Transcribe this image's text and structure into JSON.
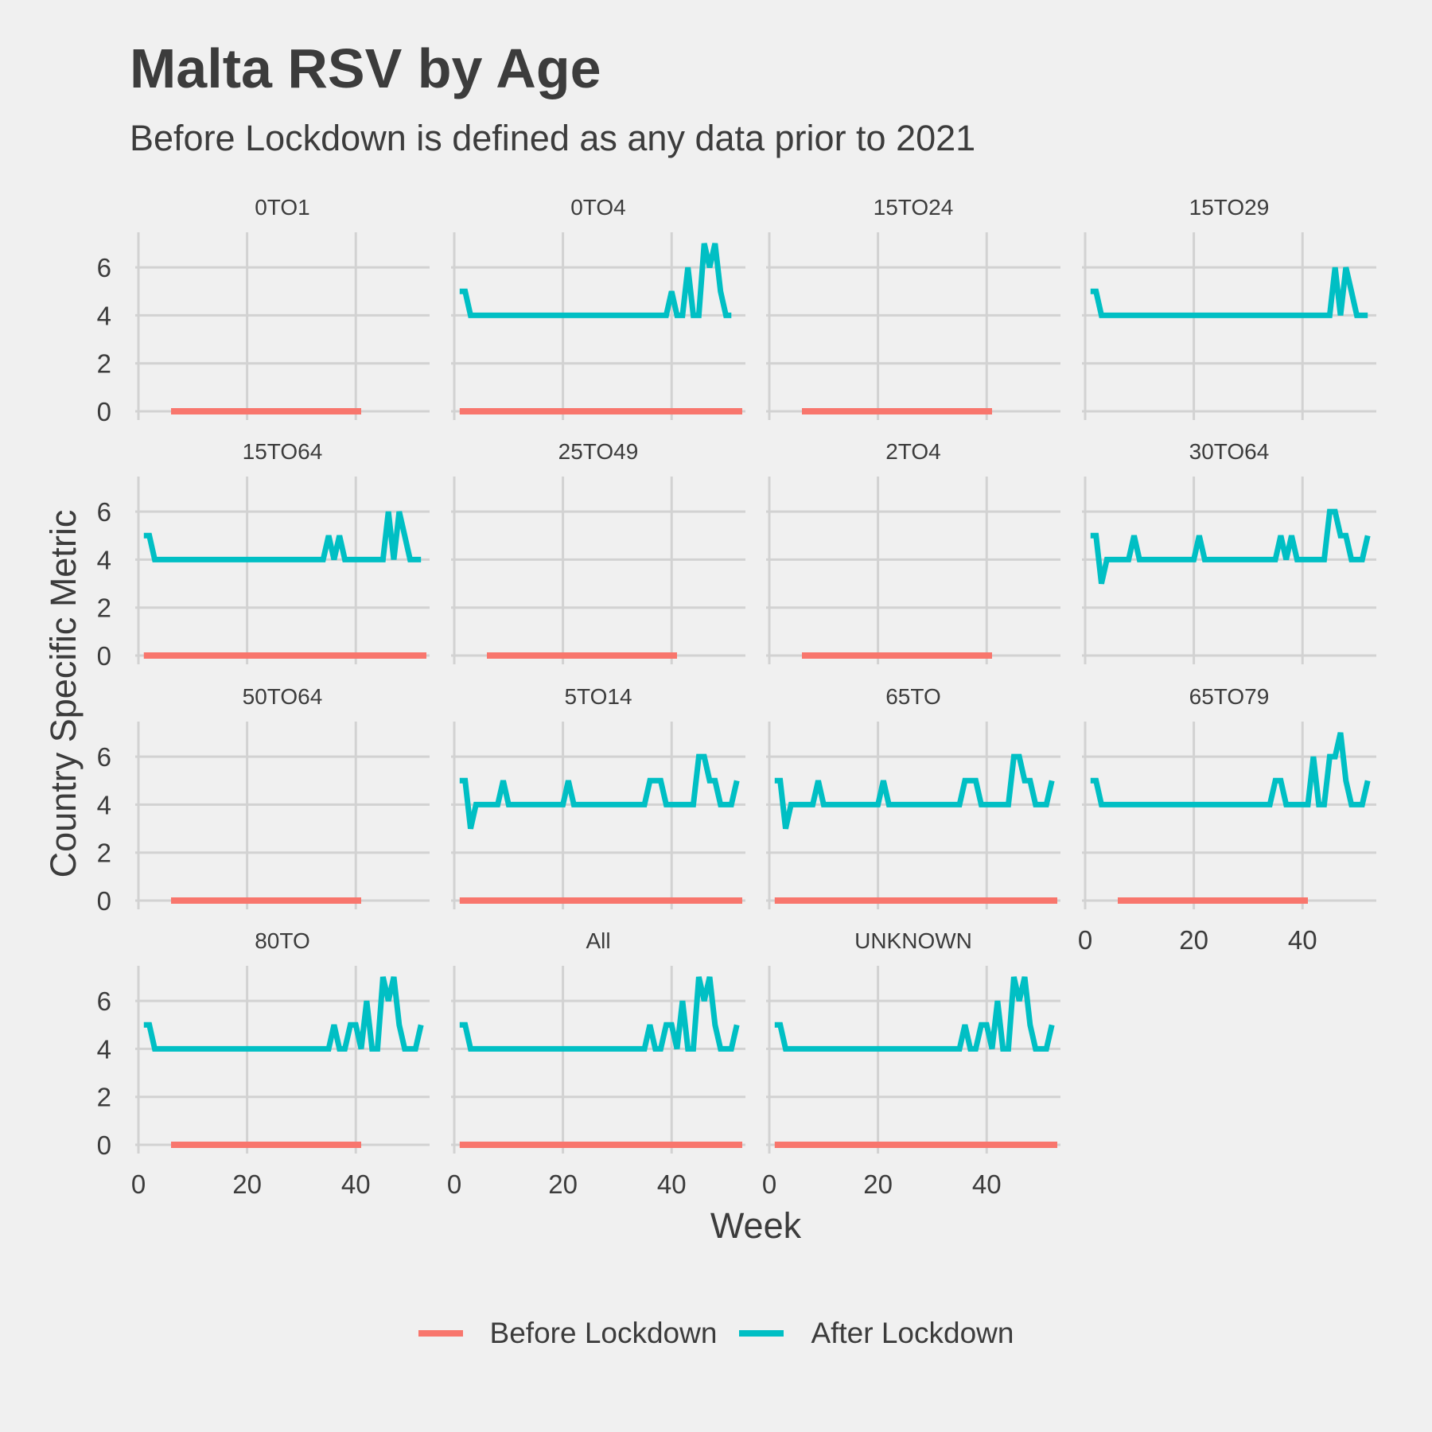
{
  "title": "Malta RSV by Age",
  "subtitle": "Before Lockdown is defined as any data prior to 2021",
  "legend": {
    "before_label": "Before Lockdown",
    "after_label": "After Lockdown",
    "before_color": "#F8766D",
    "after_color": "#00BFC4"
  },
  "chart_data": {
    "type": "line",
    "title": "Malta RSV by Age",
    "subtitle": "Before Lockdown is defined as any data prior to 2021",
    "xlabel": "Week",
    "ylabel": "Country Specific Metric",
    "xlim": [
      0,
      53
    ],
    "ylim": [
      0,
      7
    ],
    "x_ticks": [
      0,
      20,
      40
    ],
    "y_ticks": [
      0,
      2,
      4,
      6
    ],
    "grid": true,
    "legend_position": "bottom",
    "series_names": [
      "Before Lockdown",
      "After Lockdown"
    ],
    "facets": [
      {
        "name": "0TO1",
        "before": [
          [
            6,
            0
          ],
          [
            41,
            0
          ]
        ],
        "after": []
      },
      {
        "name": "0TO4",
        "before": [
          [
            1,
            0
          ],
          [
            53,
            0
          ]
        ],
        "after": [
          [
            1,
            5
          ],
          [
            2,
            5
          ],
          [
            3,
            4
          ],
          [
            39,
            4
          ],
          [
            40,
            5
          ],
          [
            41,
            4
          ],
          [
            42,
            4
          ],
          [
            43,
            6
          ],
          [
            44,
            4
          ],
          [
            45,
            4
          ],
          [
            46,
            7
          ],
          [
            47,
            6
          ],
          [
            48,
            7
          ],
          [
            49,
            5
          ],
          [
            50,
            4
          ],
          [
            51,
            4
          ]
        ]
      },
      {
        "name": "15TO24",
        "before": [
          [
            6,
            0
          ],
          [
            41,
            0
          ]
        ],
        "after": []
      },
      {
        "name": "15TO29",
        "before": [],
        "after": [
          [
            1,
            5
          ],
          [
            2,
            5
          ],
          [
            3,
            4
          ],
          [
            45,
            4
          ],
          [
            46,
            6
          ],
          [
            47,
            4
          ],
          [
            48,
            6
          ],
          [
            49,
            5
          ],
          [
            50,
            4
          ],
          [
            52,
            4
          ]
        ]
      },
      {
        "name": "15TO64",
        "before": [
          [
            1,
            0
          ],
          [
            53,
            0
          ]
        ],
        "after": [
          [
            1,
            5
          ],
          [
            2,
            5
          ],
          [
            3,
            4
          ],
          [
            34,
            4
          ],
          [
            35,
            5
          ],
          [
            36,
            4
          ],
          [
            37,
            5
          ],
          [
            38,
            4
          ],
          [
            45,
            4
          ],
          [
            46,
            6
          ],
          [
            47,
            4
          ],
          [
            48,
            6
          ],
          [
            49,
            5
          ],
          [
            50,
            4
          ],
          [
            52,
            4
          ]
        ]
      },
      {
        "name": "25TO49",
        "before": [
          [
            6,
            0
          ],
          [
            41,
            0
          ]
        ],
        "after": []
      },
      {
        "name": "2TO4",
        "before": [
          [
            6,
            0
          ],
          [
            41,
            0
          ]
        ],
        "after": []
      },
      {
        "name": "30TO64",
        "before": [],
        "after": [
          [
            1,
            5
          ],
          [
            2,
            5
          ],
          [
            3,
            3
          ],
          [
            4,
            4
          ],
          [
            8,
            4
          ],
          [
            9,
            5
          ],
          [
            10,
            4
          ],
          [
            20,
            4
          ],
          [
            21,
            5
          ],
          [
            22,
            4
          ],
          [
            35,
            4
          ],
          [
            36,
            5
          ],
          [
            37,
            4
          ],
          [
            38,
            5
          ],
          [
            39,
            4
          ],
          [
            44,
            4
          ],
          [
            45,
            6
          ],
          [
            46,
            6
          ],
          [
            47,
            5
          ],
          [
            48,
            5
          ],
          [
            49,
            4
          ],
          [
            51,
            4
          ],
          [
            52,
            5
          ]
        ]
      },
      {
        "name": "50TO64",
        "before": [
          [
            6,
            0
          ],
          [
            41,
            0
          ]
        ],
        "after": []
      },
      {
        "name": "5TO14",
        "before": [
          [
            1,
            0
          ],
          [
            53,
            0
          ]
        ],
        "after": [
          [
            1,
            5
          ],
          [
            2,
            5
          ],
          [
            3,
            3
          ],
          [
            4,
            4
          ],
          [
            8,
            4
          ],
          [
            9,
            5
          ],
          [
            10,
            4
          ],
          [
            20,
            4
          ],
          [
            21,
            5
          ],
          [
            22,
            4
          ],
          [
            35,
            4
          ],
          [
            36,
            5
          ],
          [
            38,
            5
          ],
          [
            39,
            4
          ],
          [
            44,
            4
          ],
          [
            45,
            6
          ],
          [
            46,
            6
          ],
          [
            47,
            5
          ],
          [
            48,
            5
          ],
          [
            49,
            4
          ],
          [
            51,
            4
          ],
          [
            52,
            5
          ]
        ]
      },
      {
        "name": "65TO",
        "before": [
          [
            1,
            0
          ],
          [
            53,
            0
          ]
        ],
        "after": [
          [
            1,
            5
          ],
          [
            2,
            5
          ],
          [
            3,
            3
          ],
          [
            4,
            4
          ],
          [
            8,
            4
          ],
          [
            9,
            5
          ],
          [
            10,
            4
          ],
          [
            20,
            4
          ],
          [
            21,
            5
          ],
          [
            22,
            4
          ],
          [
            35,
            4
          ],
          [
            36,
            5
          ],
          [
            38,
            5
          ],
          [
            39,
            4
          ],
          [
            44,
            4
          ],
          [
            45,
            6
          ],
          [
            46,
            6
          ],
          [
            47,
            5
          ],
          [
            48,
            5
          ],
          [
            49,
            4
          ],
          [
            51,
            4
          ],
          [
            52,
            5
          ]
        ]
      },
      {
        "name": "65TO79",
        "before": [
          [
            6,
            0
          ],
          [
            41,
            0
          ]
        ],
        "after": [
          [
            1,
            5
          ],
          [
            2,
            5
          ],
          [
            3,
            4
          ],
          [
            34,
            4
          ],
          [
            35,
            5
          ],
          [
            36,
            5
          ],
          [
            37,
            4
          ],
          [
            40,
            4
          ],
          [
            41,
            4
          ],
          [
            42,
            6
          ],
          [
            43,
            4
          ],
          [
            44,
            4
          ],
          [
            45,
            6
          ],
          [
            46,
            6
          ],
          [
            47,
            7
          ],
          [
            48,
            5
          ],
          [
            49,
            4
          ],
          [
            51,
            4
          ],
          [
            52,
            5
          ]
        ]
      },
      {
        "name": "80TO",
        "before": [
          [
            6,
            0
          ],
          [
            41,
            0
          ]
        ],
        "after": [
          [
            1,
            5
          ],
          [
            2,
            5
          ],
          [
            3,
            4
          ],
          [
            35,
            4
          ],
          [
            36,
            5
          ],
          [
            37,
            4
          ],
          [
            38,
            4
          ],
          [
            39,
            5
          ],
          [
            40,
            5
          ],
          [
            41,
            4
          ],
          [
            42,
            6
          ],
          [
            43,
            4
          ],
          [
            44,
            4
          ],
          [
            45,
            7
          ],
          [
            46,
            6
          ],
          [
            47,
            7
          ],
          [
            48,
            5
          ],
          [
            49,
            4
          ],
          [
            51,
            4
          ],
          [
            52,
            5
          ]
        ]
      },
      {
        "name": "All",
        "before": [
          [
            1,
            0
          ],
          [
            53,
            0
          ]
        ],
        "after": [
          [
            1,
            5
          ],
          [
            2,
            5
          ],
          [
            3,
            4
          ],
          [
            35,
            4
          ],
          [
            36,
            5
          ],
          [
            37,
            4
          ],
          [
            38,
            4
          ],
          [
            39,
            5
          ],
          [
            40,
            5
          ],
          [
            41,
            4
          ],
          [
            42,
            6
          ],
          [
            43,
            4
          ],
          [
            44,
            4
          ],
          [
            45,
            7
          ],
          [
            46,
            6
          ],
          [
            47,
            7
          ],
          [
            48,
            5
          ],
          [
            49,
            4
          ],
          [
            51,
            4
          ],
          [
            52,
            5
          ]
        ]
      },
      {
        "name": "UNKNOWN",
        "before": [
          [
            1,
            0
          ],
          [
            53,
            0
          ]
        ],
        "after": [
          [
            1,
            5
          ],
          [
            2,
            5
          ],
          [
            3,
            4
          ],
          [
            35,
            4
          ],
          [
            36,
            5
          ],
          [
            37,
            4
          ],
          [
            38,
            4
          ],
          [
            39,
            5
          ],
          [
            40,
            5
          ],
          [
            41,
            4
          ],
          [
            42,
            6
          ],
          [
            43,
            4
          ],
          [
            44,
            4
          ],
          [
            45,
            7
          ],
          [
            46,
            6
          ],
          [
            47,
            7
          ],
          [
            48,
            5
          ],
          [
            49,
            4
          ],
          [
            51,
            4
          ],
          [
            52,
            5
          ]
        ]
      }
    ]
  }
}
